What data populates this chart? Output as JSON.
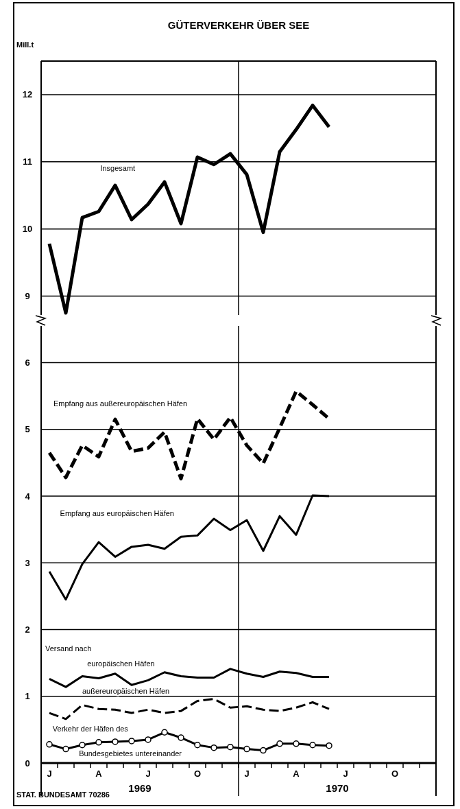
{
  "chart_data": [
    {
      "type": "line",
      "title": "GÜTERVERKEHR ÜBER SEE",
      "ylabel": "Mill.t",
      "categories": [
        null,
        null,
        null,
        null,
        null,
        null,
        null,
        null,
        null,
        null,
        null,
        null,
        null,
        null,
        null,
        null,
        null,
        null,
        null,
        null,
        null,
        null,
        null,
        null
      ],
      "ylim": [
        8.72,
        12.5
      ],
      "yticks": [
        9,
        10,
        11,
        12
      ],
      "grid": "y",
      "tick_labels": "y",
      "series": [
        {
          "name": "Insgesamt",
          "color": "#000000",
          "line_style": "solid",
          "values": [
            9.78,
            8.75,
            10.17,
            10.26,
            10.65,
            10.14,
            10.37,
            10.7,
            10.08,
            11.07,
            10.96,
            11.12,
            10.81,
            9.95,
            11.15,
            11.48,
            11.84,
            11.52,
            null,
            null,
            null,
            null,
            null,
            null
          ]
        }
      ]
    },
    {
      "type": "line",
      "categories": [
        "J",
        null,
        null,
        "A",
        null,
        null,
        "J",
        null,
        null,
        "O",
        null,
        null,
        "J",
        null,
        null,
        "A",
        null,
        null,
        "J",
        null,
        null,
        "O",
        null,
        null
      ],
      "ylim": [
        0,
        6.55
      ],
      "yticks": [
        0,
        1,
        2,
        3,
        4,
        5,
        6
      ],
      "grid": "y",
      "annotations": [
        "1969",
        "1970",
        "Versand nach",
        "STAT. BUNDESAMT 70286"
      ],
      "series": [
        {
          "name": "Empfang aus außereuropäischen Häfen",
          "color": "#000000",
          "line_style": "dashed",
          "values": [
            4.65,
            4.28,
            4.76,
            4.59,
            5.15,
            4.67,
            4.72,
            4.96,
            4.26,
            5.16,
            4.85,
            5.18,
            4.76,
            4.49,
            5.02,
            5.57,
            5.37,
            5.16,
            null,
            null,
            null,
            null,
            null,
            null
          ]
        },
        {
          "name": "Empfang aus europäischen Häfen",
          "color": "#000000",
          "line_style": "solid",
          "values": [
            2.87,
            2.45,
            2.98,
            3.31,
            3.09,
            3.24,
            3.27,
            3.21,
            3.39,
            3.41,
            3.66,
            3.49,
            3.64,
            3.18,
            3.7,
            3.42,
            4.01,
            4.0,
            null,
            null,
            null,
            null,
            null,
            null
          ]
        },
        {
          "name": "europäischen Häfen",
          "color": "#000000",
          "line_style": "solid",
          "values": [
            1.26,
            1.14,
            1.3,
            1.27,
            1.34,
            1.17,
            1.24,
            1.36,
            1.3,
            1.28,
            1.28,
            1.41,
            1.34,
            1.29,
            1.37,
            1.35,
            1.29,
            1.29,
            null,
            null,
            null,
            null,
            null,
            null
          ]
        },
        {
          "name": "außereuropäischen Häfen",
          "color": "#000000",
          "line_style": "dashed",
          "values": [
            0.75,
            0.66,
            0.87,
            0.81,
            0.8,
            0.75,
            0.8,
            0.75,
            0.78,
            0.93,
            0.96,
            0.83,
            0.85,
            0.8,
            0.78,
            0.83,
            0.91,
            0.81,
            null,
            null,
            null,
            null,
            null,
            null
          ]
        },
        {
          "name": "Verkehr der Häfen des Bundesgebietes untereinander",
          "color": "#000000",
          "line_style": "solid",
          "marker": "circle",
          "values": [
            0.28,
            0.21,
            0.27,
            0.31,
            0.32,
            0.33,
            0.35,
            0.46,
            0.38,
            0.27,
            0.23,
            0.24,
            0.21,
            0.19,
            0.29,
            0.29,
            0.27,
            0.26,
            null,
            null,
            null,
            null,
            null,
            null
          ]
        }
      ]
    }
  ]
}
